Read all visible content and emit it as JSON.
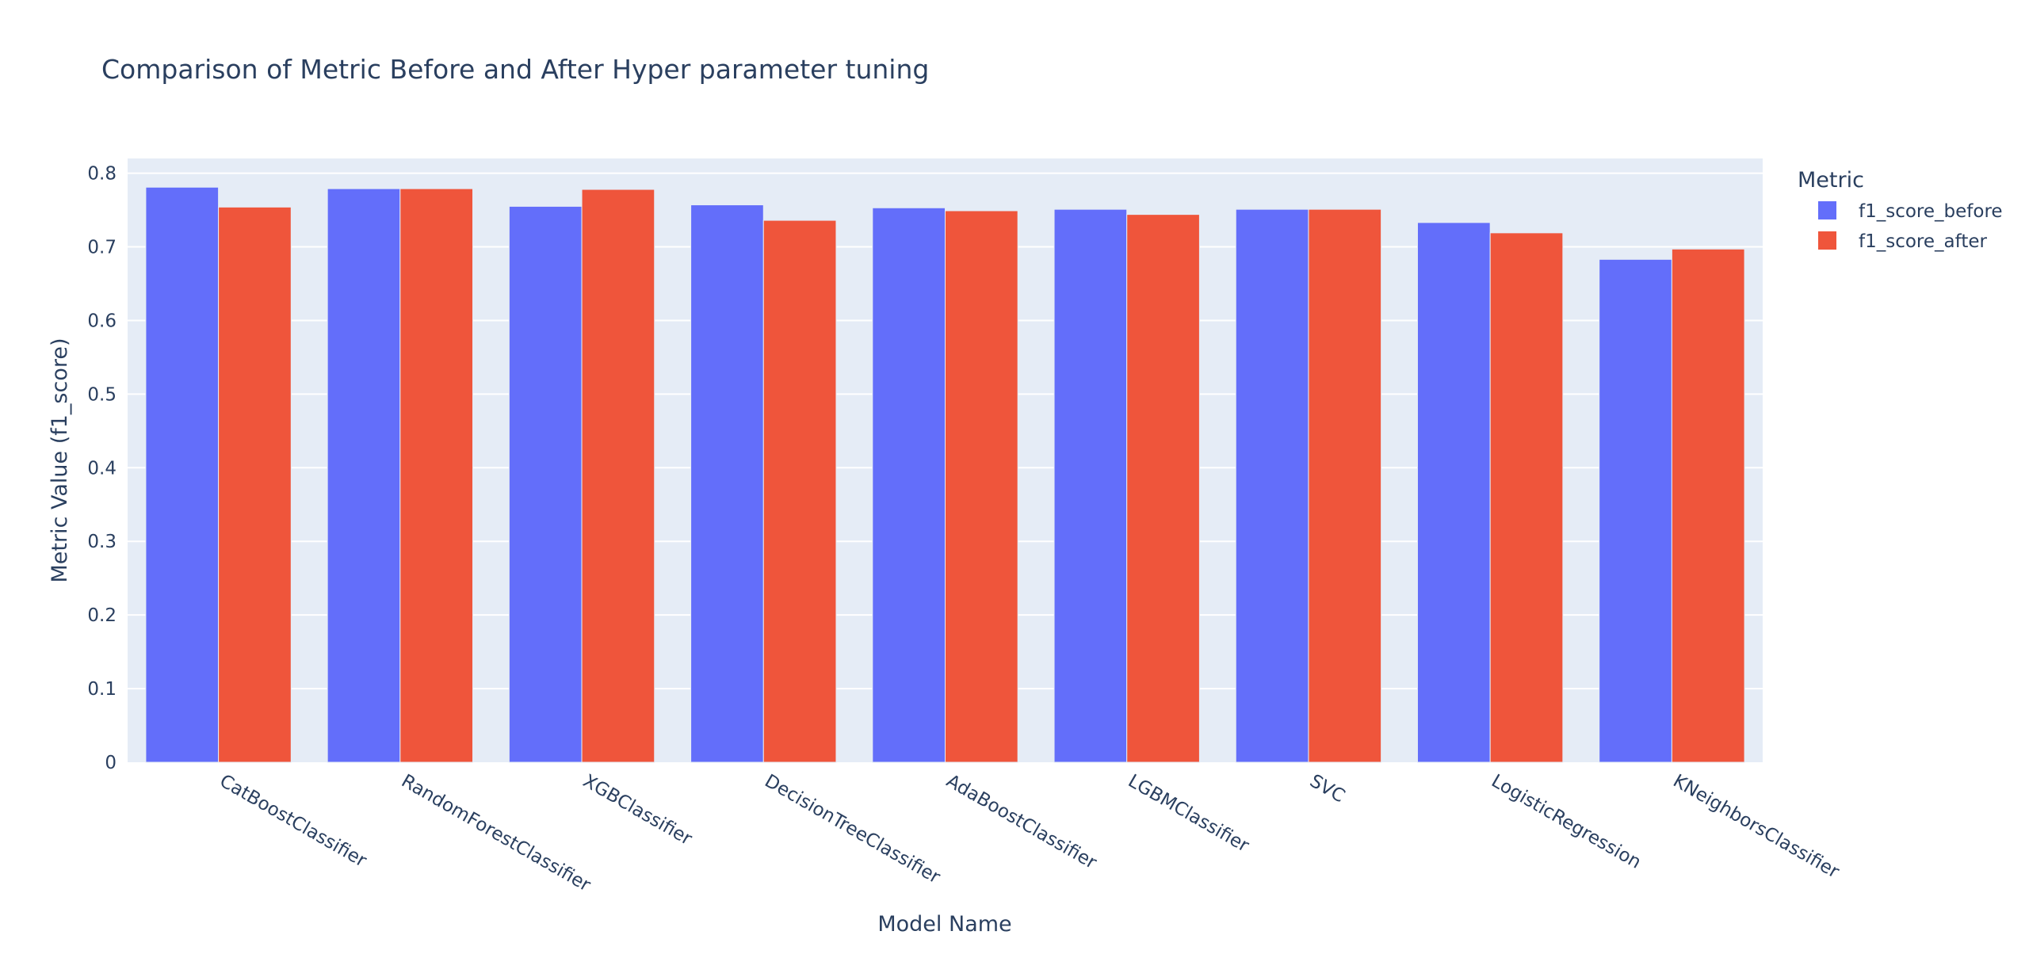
{
  "chart_data": {
    "type": "bar",
    "barmode": "group",
    "title": "Comparison of Metric Before and After Hyper parameter tuning",
    "xlabel": "Model Name",
    "ylabel": "Metric Value (f1_score)",
    "ylim": [
      0,
      0.82
    ],
    "yticks": [
      0,
      0.1,
      0.2,
      0.3,
      0.4,
      0.5,
      0.6,
      0.7,
      0.8
    ],
    "ytick_labels": [
      "0",
      "0.1",
      "0.2",
      "0.3",
      "0.4",
      "0.5",
      "0.6",
      "0.7",
      "0.8"
    ],
    "grid": true,
    "legend_title": "Metric",
    "legend_position": "top-right",
    "categories": [
      "CatBoostClassifier",
      "RandomForestClassifier",
      "XGBClassifier",
      "DecisionTreeClassifier",
      "AdaBoostClassifier",
      "LGBMClassifier",
      "SVC",
      "LogisticRegression",
      "KNeighborsClassifier"
    ],
    "series": [
      {
        "name": "f1_score_before",
        "color": "#636efa",
        "values": [
          0.781,
          0.779,
          0.755,
          0.757,
          0.753,
          0.751,
          0.751,
          0.733,
          0.683
        ]
      },
      {
        "name": "f1_score_after",
        "color": "#ef553b",
        "values": [
          0.754,
          0.779,
          0.778,
          0.736,
          0.749,
          0.744,
          0.751,
          0.719,
          0.697
        ]
      }
    ],
    "colors": {
      "plot_background": "#e5ecf6",
      "grid": "#ffffff",
      "text": "#2a3f5f"
    }
  }
}
